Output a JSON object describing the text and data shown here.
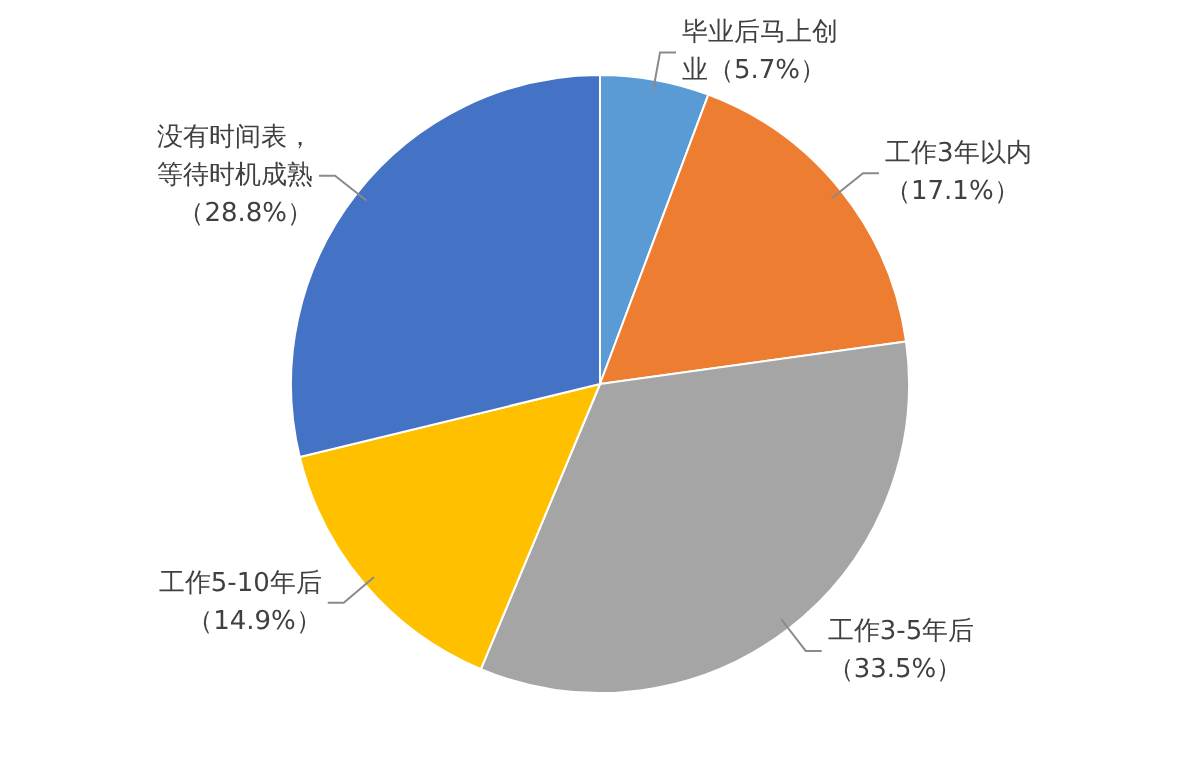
{
  "chart_data": {
    "type": "pie",
    "categories": [
      "毕业后马上创业",
      "工作3年以内",
      "工作3-5年后",
      "工作5-10年后",
      "没有时间表，等待时机成熟"
    ],
    "values": [
      5.7,
      17.1,
      33.5,
      14.9,
      28.8
    ],
    "value_labels": [
      "（5.7%）",
      "（17.1%）",
      "（33.5%）",
      "（14.9%）",
      "（28.8%）"
    ],
    "colors": [
      "#5b9bd5",
      "#ed7d31",
      "#a5a5a5",
      "#ffc000",
      "#4472c4"
    ],
    "legend": false
  }
}
